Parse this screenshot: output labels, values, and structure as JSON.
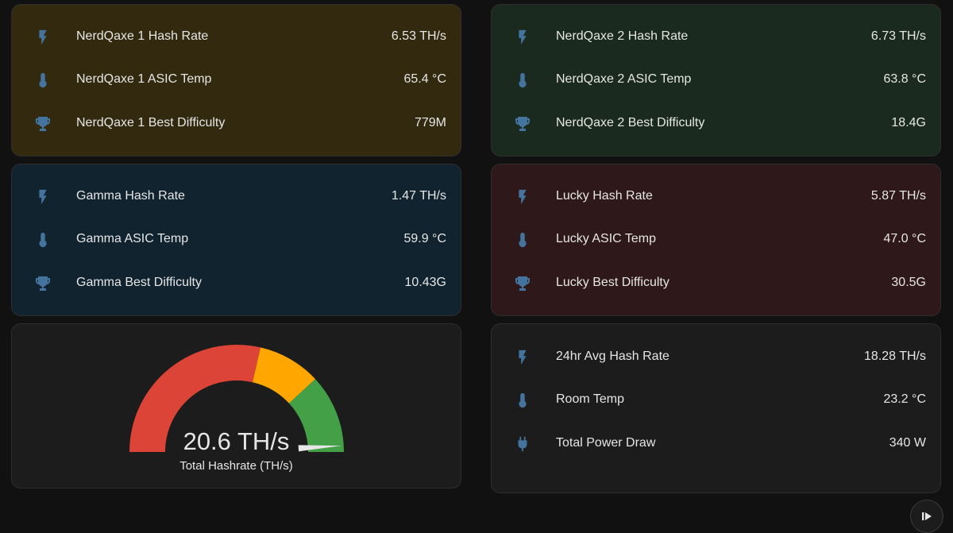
{
  "colors": {
    "page_background": "#111111",
    "icon": "#44739e",
    "gauge_red": "#db4437",
    "gauge_yellow": "#ffa600",
    "gauge_green": "#43a047"
  },
  "cards": {
    "nerdqaxe1": {
      "background": "#32290f",
      "rows": [
        {
          "icon": "lightning-bolt-icon",
          "label": "NerdQaxe 1 Hash Rate",
          "value": "6.53 TH/s"
        },
        {
          "icon": "thermometer-icon",
          "label": "NerdQaxe 1 ASIC Temp",
          "value": "65.4 °C"
        },
        {
          "icon": "trophy-icon",
          "label": "NerdQaxe 1 Best Difficulty",
          "value": "779M"
        }
      ]
    },
    "nerdqaxe2": {
      "background": "#1b2a1e",
      "rows": [
        {
          "icon": "lightning-bolt-icon",
          "label": "NerdQaxe 2 Hash Rate",
          "value": "6.73 TH/s"
        },
        {
          "icon": "thermometer-icon",
          "label": "NerdQaxe 2 ASIC Temp",
          "value": "63.8 °C"
        },
        {
          "icon": "trophy-icon",
          "label": "NerdQaxe 2 Best Difficulty",
          "value": "18.4G"
        }
      ]
    },
    "gamma": {
      "background": "#10232f",
      "rows": [
        {
          "icon": "lightning-bolt-icon",
          "label": "Gamma Hash Rate",
          "value": "1.47 TH/s"
        },
        {
          "icon": "thermometer-icon",
          "label": "Gamma ASIC Temp",
          "value": "59.9 °C"
        },
        {
          "icon": "trophy-icon",
          "label": "Gamma Best Difficulty",
          "value": "10.43G"
        }
      ]
    },
    "lucky": {
      "background": "#2e1819",
      "rows": [
        {
          "icon": "lightning-bolt-icon",
          "label": "Lucky Hash Rate",
          "value": "5.87 TH/s"
        },
        {
          "icon": "thermometer-icon",
          "label": "Lucky ASIC Temp",
          "value": "47.0 °C"
        },
        {
          "icon": "trophy-icon",
          "label": "Lucky Best Difficulty",
          "value": "30.5G"
        }
      ]
    },
    "summary": {
      "background": "#1c1c1c",
      "rows": [
        {
          "icon": "lightning-bolt-icon",
          "label": "24hr Avg Hash Rate",
          "value": "18.28 TH/s"
        },
        {
          "icon": "thermometer-icon",
          "label": "Room Temp",
          "value": "23.2 °C"
        },
        {
          "icon": "power-plug-icon",
          "label": "Total Power Draw",
          "value": "340 W"
        }
      ]
    }
  },
  "gauge": {
    "background": "#1c1c1c",
    "value_text": "20.6 TH/s",
    "name": "Total Hashrate (TH/s)",
    "value": 20.6,
    "min": 0,
    "max": 21,
    "segments": [
      {
        "from": 0,
        "to": 12,
        "color": "#db4437"
      },
      {
        "from": 12,
        "to": 16,
        "color": "#ffa600"
      },
      {
        "from": 16,
        "to": 21,
        "color": "#43a047"
      }
    ]
  },
  "fab": {
    "icon": "play-pause-icon"
  }
}
